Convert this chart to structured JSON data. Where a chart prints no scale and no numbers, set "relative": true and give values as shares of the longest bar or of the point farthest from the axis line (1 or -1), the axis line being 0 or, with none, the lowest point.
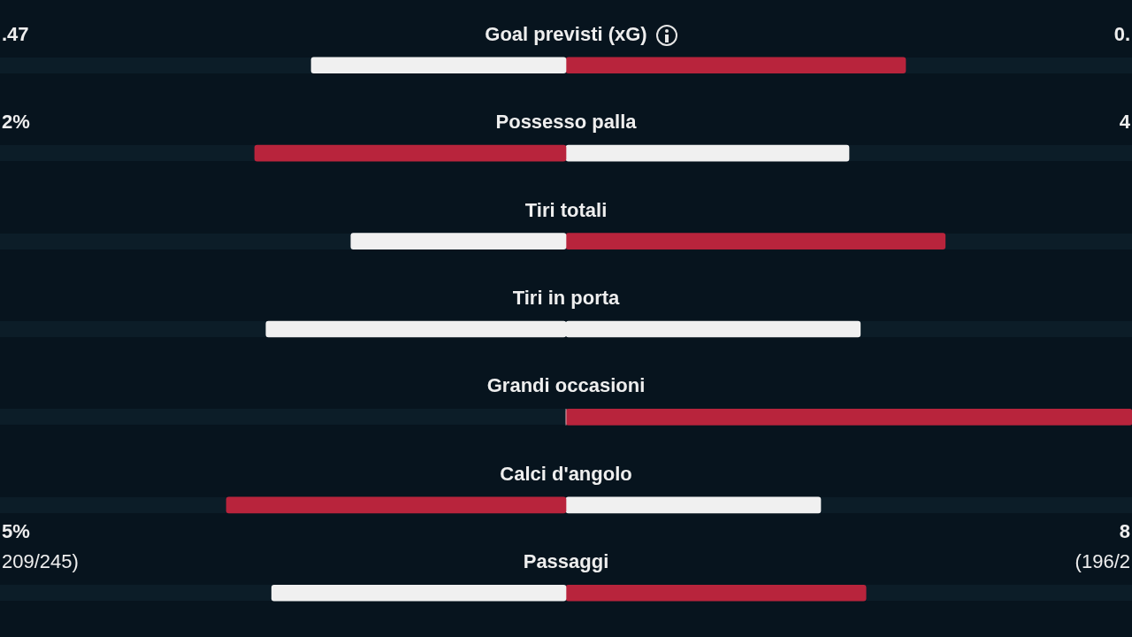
{
  "chart_data": {
    "type": "bar",
    "orientation": "horizontal",
    "stacked": true,
    "relative": true,
    "legend": false,
    "categories": [
      "Goal previsti (xG)",
      "Possesso palla",
      "Tiri totali",
      "Tiri in porta",
      "Grandi occasioni",
      "Calci d'angolo",
      "Passaggi"
    ],
    "series": [
      {
        "colors": [
          "#f0f0f0",
          "#b8243c",
          "#f0f0f0",
          "#f0f0f0",
          "#f0f0f0",
          "#b8243c",
          "#f0f0f0"
        ],
        "values": [
          -0.45,
          -0.55,
          -0.38,
          -0.53,
          0,
          -0.6,
          -0.52
        ]
      },
      {
        "colors": [
          "#b8243c",
          "#f0f0f0",
          "#b8243c",
          "#f0f0f0",
          "#b8243c",
          "#f0f0f0",
          "#b8243c"
        ],
        "values": [
          0.6,
          0.5,
          0.67,
          0.52,
          1,
          0.45,
          0.53
        ]
      }
    ],
    "annotations": [
      ".47",
      "0.",
      "2%",
      "4",
      "5%",
      "209/245)",
      "8",
      "(196/2"
    ]
  }
}
